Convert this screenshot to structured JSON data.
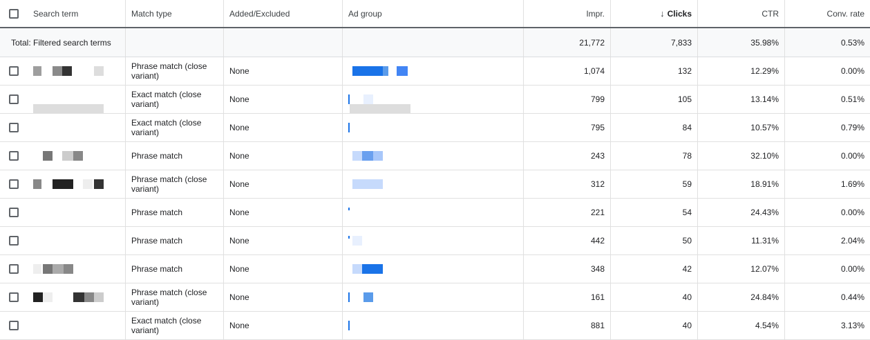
{
  "header": {
    "search_term": "Search term",
    "match_type": "Match type",
    "added_excluded": "Added/Excluded",
    "ad_group": "Ad group",
    "impr": "Impr.",
    "clicks": "Clicks",
    "ctr": "CTR",
    "conv_rate": "Conv. rate",
    "sort_icon": "arrow-down-icon"
  },
  "total": {
    "label": "Total: Filtered search terms",
    "impr": "21,772",
    "clicks": "7,833",
    "ctr": "35.98%",
    "conv_rate": "0.53%"
  },
  "rows": [
    {
      "match": "Phrase match (close variant)",
      "added": "None",
      "impr": "1,074",
      "clicks": "132",
      "ctr": "12.29%",
      "conv": "0.00%"
    },
    {
      "match": "Exact match (close variant)",
      "added": "None",
      "impr": "799",
      "clicks": "105",
      "ctr": "13.14%",
      "conv": "0.51%"
    },
    {
      "match": "Exact match (close variant)",
      "added": "None",
      "impr": "795",
      "clicks": "84",
      "ctr": "10.57%",
      "conv": "0.79%"
    },
    {
      "match": "Phrase match",
      "added": "None",
      "impr": "243",
      "clicks": "78",
      "ctr": "32.10%",
      "conv": "0.00%"
    },
    {
      "match": "Phrase match (close variant)",
      "added": "None",
      "impr": "312",
      "clicks": "59",
      "ctr": "18.91%",
      "conv": "1.69%"
    },
    {
      "match": "Phrase match",
      "added": "None",
      "impr": "221",
      "clicks": "54",
      "ctr": "24.43%",
      "conv": "0.00%"
    },
    {
      "match": "Phrase match",
      "added": "None",
      "impr": "442",
      "clicks": "50",
      "ctr": "11.31%",
      "conv": "2.04%"
    },
    {
      "match": "Phrase match",
      "added": "None",
      "impr": "348",
      "clicks": "42",
      "ctr": "12.07%",
      "conv": "0.00%"
    },
    {
      "match": "Phrase match (close variant)",
      "added": "None",
      "impr": "161",
      "clicks": "40",
      "ctr": "24.84%",
      "conv": "0.44%"
    },
    {
      "match": "Exact match (close variant)",
      "added": "None",
      "impr": "881",
      "clicks": "40",
      "ctr": "4.54%",
      "conv": "3.13%"
    }
  ],
  "colors": {
    "header_border": "#5f6368",
    "total_bg": "#f8f9fa",
    "link_blue": "#1a73e8",
    "redacted_gray": "#d0d0d0"
  }
}
